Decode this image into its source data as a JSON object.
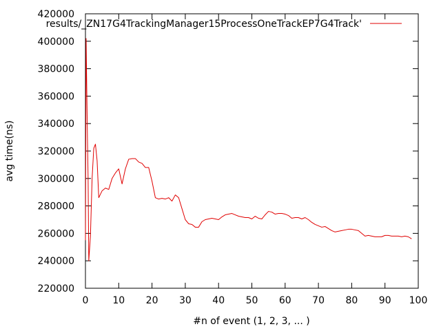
{
  "chart_data": {
    "type": "line",
    "title": "",
    "xlabel": "#n of event (1, 2, 3, ... )",
    "ylabel": "avg time(ns)",
    "xlim": [
      0,
      100
    ],
    "ylim": [
      220000,
      420000
    ],
    "xticks": [
      0,
      10,
      20,
      30,
      40,
      50,
      60,
      70,
      80,
      90,
      100
    ],
    "yticks": [
      220000,
      240000,
      260000,
      280000,
      300000,
      320000,
      340000,
      360000,
      380000,
      400000,
      420000
    ],
    "grid": false,
    "legend_position": "top-right",
    "series": [
      {
        "name": "results/_ZN17G4TrackingManager15ProcessOneTrackEP7G4Track'",
        "color": "#e00000",
        "points": [
          [
            0,
            255000
          ],
          [
            0.2,
            402000
          ],
          [
            0.4,
            365000
          ],
          [
            0.6,
            330000
          ],
          [
            0.8,
            300000
          ],
          [
            1,
            240000
          ],
          [
            1.5,
            258000
          ],
          [
            2,
            300000
          ],
          [
            2.5,
            322000
          ],
          [
            3,
            325000
          ],
          [
            3.5,
            313000
          ],
          [
            4,
            286000
          ],
          [
            5,
            291000
          ],
          [
            6,
            293000
          ],
          [
            7,
            292000
          ],
          [
            8,
            300000
          ],
          [
            9,
            304000
          ],
          [
            10,
            307000
          ],
          [
            11,
            296000
          ],
          [
            12,
            307000
          ],
          [
            13,
            314000
          ],
          [
            14,
            314500
          ],
          [
            15,
            314500
          ],
          [
            16,
            312000
          ],
          [
            17,
            311000
          ],
          [
            18,
            308000
          ],
          [
            19,
            308000
          ],
          [
            20,
            298000
          ],
          [
            21,
            286000
          ],
          [
            22,
            285000
          ],
          [
            23,
            285500
          ],
          [
            24,
            285000
          ],
          [
            25,
            286000
          ],
          [
            26,
            283500
          ],
          [
            27,
            288000
          ],
          [
            28,
            286000
          ],
          [
            29,
            278000
          ],
          [
            30,
            270000
          ],
          [
            31,
            267000
          ],
          [
            32,
            266500
          ],
          [
            33,
            264500
          ],
          [
            34,
            264500
          ],
          [
            35,
            268500
          ],
          [
            36,
            270000
          ],
          [
            37,
            270500
          ],
          [
            38,
            271000
          ],
          [
            39,
            270500
          ],
          [
            40,
            270000
          ],
          [
            41,
            272000
          ],
          [
            42,
            273500
          ],
          [
            43,
            274000
          ],
          [
            44,
            274500
          ],
          [
            45,
            273500
          ],
          [
            46,
            272500
          ],
          [
            47,
            272000
          ],
          [
            48,
            271500
          ],
          [
            49,
            271500
          ],
          [
            50,
            270500
          ],
          [
            51,
            272500
          ],
          [
            52,
            271000
          ],
          [
            53,
            270500
          ],
          [
            54,
            273500
          ],
          [
            55,
            276000
          ],
          [
            56,
            275500
          ],
          [
            57,
            274000
          ],
          [
            58,
            274500
          ],
          [
            59,
            274500
          ],
          [
            60,
            274000
          ],
          [
            61,
            273000
          ],
          [
            62,
            271000
          ],
          [
            63,
            271500
          ],
          [
            64,
            271500
          ],
          [
            65,
            270500
          ],
          [
            66,
            271500
          ],
          [
            67,
            270000
          ],
          [
            68,
            268000
          ],
          [
            69,
            266500
          ],
          [
            70,
            265500
          ],
          [
            71,
            264500
          ],
          [
            72,
            265000
          ],
          [
            73,
            263500
          ],
          [
            74,
            262000
          ],
          [
            75,
            261000
          ],
          [
            76,
            261500
          ],
          [
            77,
            262000
          ],
          [
            78,
            262500
          ],
          [
            79,
            263000
          ],
          [
            80,
            263000
          ],
          [
            81,
            262500
          ],
          [
            82,
            262000
          ],
          [
            83,
            260000
          ],
          [
            84,
            258000
          ],
          [
            85,
            258500
          ],
          [
            86,
            258000
          ],
          [
            87,
            257500
          ],
          [
            88,
            257500
          ],
          [
            89,
            257500
          ],
          [
            90,
            258500
          ],
          [
            91,
            258500
          ],
          [
            92,
            258000
          ],
          [
            93,
            258000
          ],
          [
            94,
            258000
          ],
          [
            95,
            257500
          ],
          [
            96,
            258000
          ],
          [
            97,
            257500
          ],
          [
            98,
            256000
          ]
        ]
      }
    ]
  }
}
